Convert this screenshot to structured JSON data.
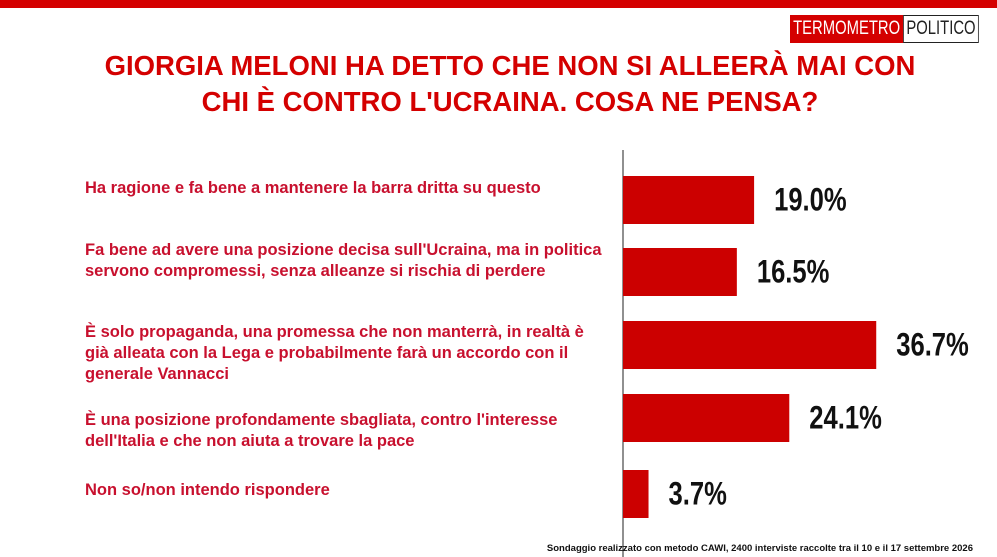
{
  "logo": {
    "part1": "TERMOMETRO",
    "part2": "POLITICO"
  },
  "chart_data": {
    "type": "bar",
    "orientation": "horizontal",
    "title": "GIORGIA MELONI HA DETTO CHE NON SI ALLEERÀ MAI CON CHI È CONTRO L'UCRAINA. COSA NE PENSA?",
    "categories": [
      "Ha ragione e fa bene a mantenere la barra dritta su questo",
      "Fa bene ad avere una posizione decisa sull'Ucraina, ma in politica servono compromessi, senza alleanze si rischia di perdere",
      "È solo propaganda, una promessa che non manterrà, in realtà  è già alleata con la Lega e probabilmente farà un accordo con il generale Vannacci",
      "È una posizione profondamente sbagliata, contro l'interesse dell'Italia e che non aiuta a trovare la pace",
      "Non so/non intendo rispondere"
    ],
    "values": [
      19.0,
      16.5,
      36.7,
      24.1,
      3.7
    ],
    "value_labels": [
      "19.0%",
      "16.5%",
      "36.7%",
      "24.1%",
      "3.7%"
    ],
    "color": "#cc0000",
    "note": "Sondaggio realizzato con metodo CAWI, 2400 interviste raccolte tra il 10 e il 17 settembre  2026"
  }
}
